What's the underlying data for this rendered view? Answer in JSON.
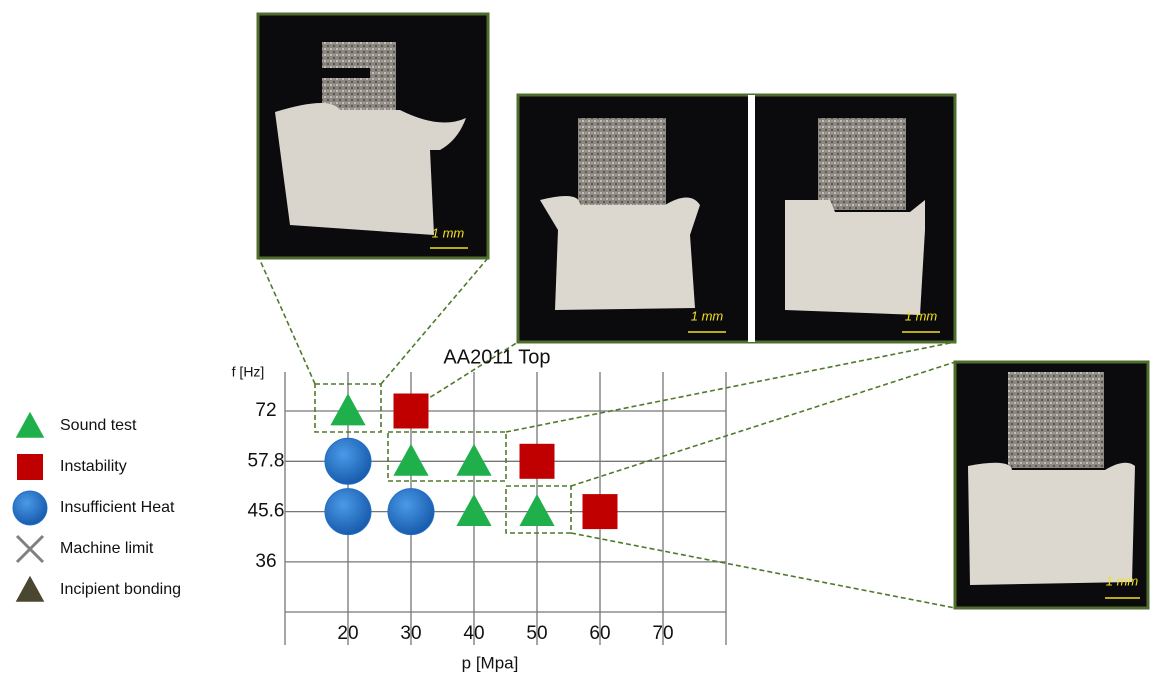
{
  "chart_data": {
    "type": "scatter",
    "title": "AA2011 Top",
    "x_label": "p [Mpa]",
    "y_label": "f [Hz]",
    "xlim": [
      10,
      80
    ],
    "xticks": [
      20,
      30,
      40,
      50,
      60,
      70
    ],
    "y_categories": [
      72,
      57.8,
      45.6,
      36
    ],
    "grid": true,
    "legend": "left",
    "series": [
      {
        "name": "Sound test",
        "marker": "triangle",
        "color": "#1fb04b",
        "x": [
          20,
          30,
          40,
          40,
          50
        ],
        "y": [
          72,
          57.8,
          57.8,
          45.6,
          45.6
        ]
      },
      {
        "name": "Instability",
        "marker": "square",
        "color": "#c00000",
        "x": [
          30,
          50,
          60
        ],
        "y": [
          72,
          57.8,
          45.6
        ]
      },
      {
        "name": "Insufficient Heat",
        "marker": "circle",
        "color": "#1f6fc8",
        "x": [
          20,
          20,
          30
        ],
        "y": [
          57.8,
          45.6,
          45.6
        ]
      },
      {
        "name": "Machine limit",
        "marker": "cross",
        "color": "#808080",
        "x": [],
        "y": []
      },
      {
        "name": "Incipient bonding",
        "marker": "triangle",
        "color": "#4a4630",
        "x": [],
        "y": []
      }
    ]
  },
  "photos": [
    {
      "scale": "1 mm"
    },
    {
      "scale": "1 mm"
    },
    {
      "scale": "1 mm"
    },
    {
      "scale": "1 mm"
    }
  ]
}
